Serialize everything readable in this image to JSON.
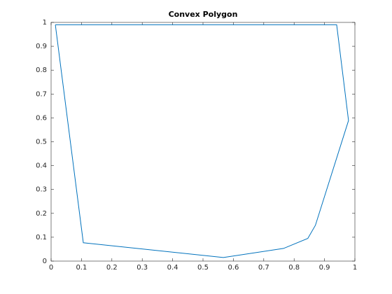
{
  "chart_data": {
    "type": "line",
    "title": "Convex Polygon",
    "x": [
      0.014,
      0.94,
      0.979,
      0.87,
      0.845,
      0.765,
      0.567,
      0.106,
      0.014
    ],
    "series": [
      {
        "color": "#0072bd",
        "values": [
          0.99,
          0.99,
          0.589,
          0.15,
          0.095,
          0.053,
          0.015,
          0.077,
          0.99
        ]
      }
    ],
    "xlim": [
      0,
      1
    ],
    "xticks": [
      0,
      0.1,
      0.2,
      0.3,
      0.4,
      0.5,
      0.6,
      0.7,
      0.8,
      0.9,
      1
    ],
    "ylim": [
      0,
      1
    ],
    "yticks": [
      0,
      0.1,
      0.2,
      0.3,
      0.4,
      0.5,
      0.6,
      0.7,
      0.8,
      0.9,
      1
    ],
    "grid": false
  }
}
